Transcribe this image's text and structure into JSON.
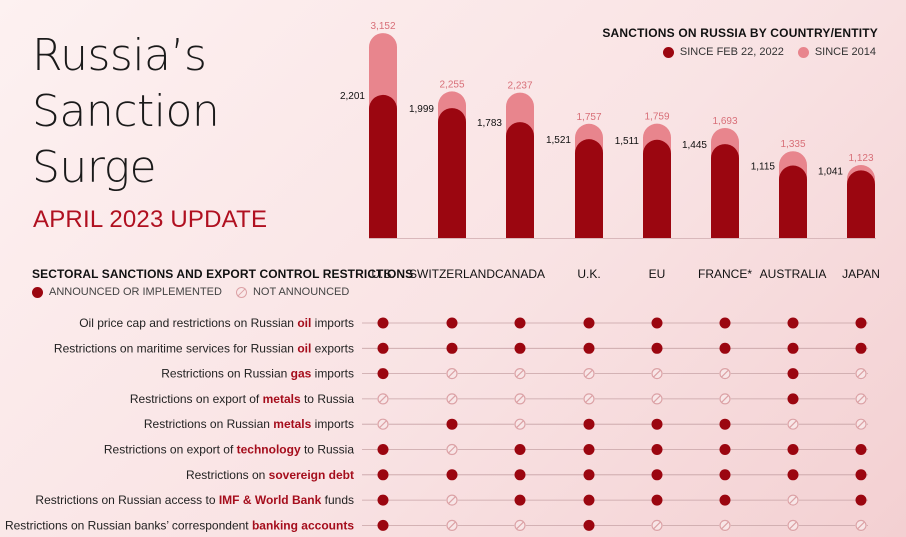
{
  "title_lines": [
    "Russia’s",
    "Sanction",
    "Surge"
  ],
  "subtitle": "APRIL 2023 UPDATE",
  "legend": {
    "title": "SANCTIONS ON RUSSIA BY COUNTRY/ENTITY",
    "since_2022": "SINCE FEB 22, 2022",
    "since_2014": "SINCE 2014"
  },
  "colors": {
    "since_2022": "#9b0610",
    "since_2014": "#e8858d",
    "not_announced": "#dca2a6",
    "connector": "#c7a3a6"
  },
  "sectoral": {
    "title": "SECTORAL SANCTIONS AND EXPORT CONTROL RESTRICTIONS",
    "announced": "ANNOUNCED OR IMPLEMENTED",
    "not_announced": "NOT ANNOUNCED"
  },
  "chart_data": {
    "type": "bar",
    "categories": [
      "U.S.",
      "SWITZERLAND",
      "CANADA",
      "U.K.",
      "EU",
      "FRANCE*",
      "AUSTRALIA",
      "JAPAN"
    ],
    "series": [
      {
        "name": "SINCE FEB 22, 2022",
        "values": [
          2201,
          1999,
          1783,
          1521,
          1511,
          1445,
          1115,
          1041
        ]
      },
      {
        "name": "SINCE 2014",
        "values": [
          3152,
          2255,
          2237,
          1757,
          1759,
          1693,
          1335,
          1123
        ]
      }
    ],
    "ylim": [
      0,
      3200
    ],
    "title": "SANCTIONS ON RUSSIA BY COUNTRY/ENTITY",
    "xlabel": "",
    "ylabel": "",
    "grid": false,
    "legend": "top-right"
  },
  "restrictions": [
    {
      "before": "Oil price cap and restrictions on Russian ",
      "highlight": "oil",
      "after": " imports",
      "status": [
        1,
        1,
        1,
        1,
        1,
        1,
        1,
        1
      ]
    },
    {
      "before": "Restrictions on maritime services for Russian ",
      "highlight": "oil",
      "after": " exports",
      "status": [
        1,
        1,
        1,
        1,
        1,
        1,
        1,
        1
      ]
    },
    {
      "before": "Restrictions on Russian ",
      "highlight": "gas",
      "after": " imports",
      "status": [
        1,
        0,
        0,
        0,
        0,
        0,
        1,
        0
      ]
    },
    {
      "before": "Restrictions on export of ",
      "highlight": "metals",
      "after": " to Russia",
      "status": [
        0,
        0,
        0,
        0,
        0,
        0,
        1,
        0
      ]
    },
    {
      "before": "Restrictions on Russian ",
      "highlight": "metals",
      "after": " imports",
      "status": [
        0,
        1,
        0,
        1,
        1,
        1,
        0,
        0
      ]
    },
    {
      "before": "Restrictions on export of ",
      "highlight": "technology",
      "after": " to Russia",
      "status": [
        1,
        0,
        1,
        1,
        1,
        1,
        1,
        1
      ]
    },
    {
      "before": "Restrictions on ",
      "highlight": "sovereign debt",
      "after": "",
      "status": [
        1,
        1,
        1,
        1,
        1,
        1,
        1,
        1
      ]
    },
    {
      "before": "Restrictions on Russian access to ",
      "highlight": "IMF & World Bank",
      "after": " funds",
      "status": [
        1,
        0,
        1,
        1,
        1,
        1,
        0,
        1
      ]
    },
    {
      "before": "Restrictions on Russian banks’ correspondent ",
      "highlight": "banking accounts",
      "after": "",
      "status": [
        1,
        0,
        0,
        1,
        0,
        0,
        0,
        0
      ]
    }
  ]
}
